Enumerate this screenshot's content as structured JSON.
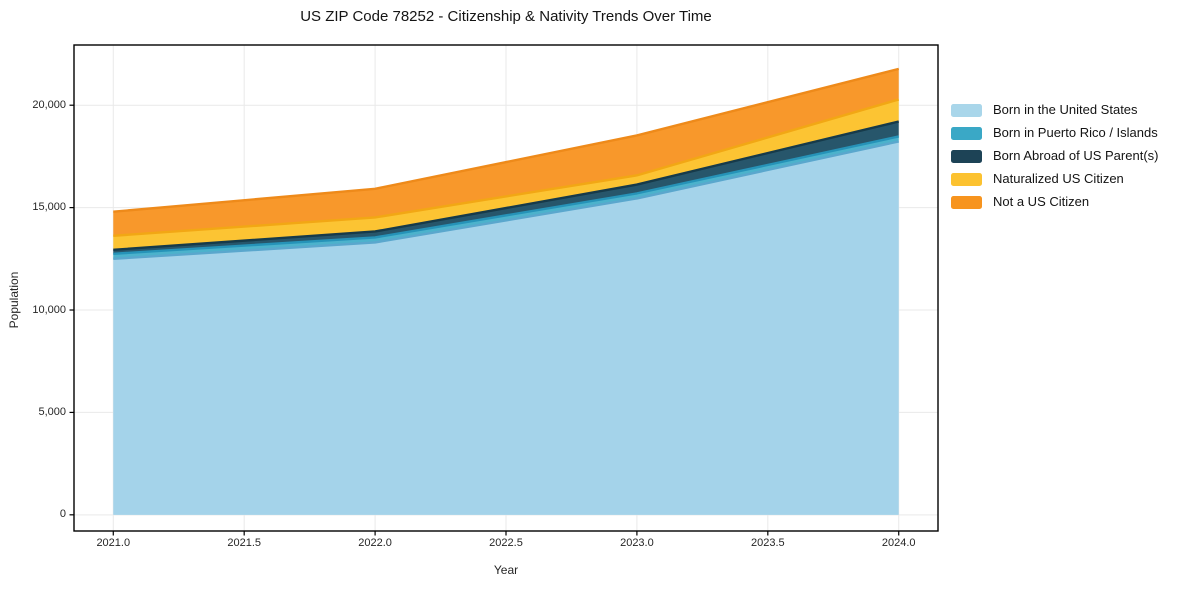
{
  "chart_data": {
    "type": "area",
    "stacked": true,
    "title": "US ZIP Code 78252 - Citizenship & Nativity Trends Over Time",
    "xlabel": "Year",
    "ylabel": "Population",
    "x": [
      2021,
      2022,
      2023,
      2024
    ],
    "series": [
      {
        "name": "Born in the United States",
        "values": [
          12500,
          13300,
          15450,
          18230
        ],
        "fill_color": "#a4d3ea",
        "line_color": "#5aa7cd",
        "legend_color": "#a9d6ea"
      },
      {
        "name": "Born in Puerto Rico / Islands",
        "values": [
          245,
          245,
          245,
          245
        ],
        "fill_color": "#4cb2cc",
        "line_color": "#2693b8",
        "legend_color": "#3aa8c6"
      },
      {
        "name": "Born Abroad of US Parent(s)",
        "values": [
          195,
          290,
          430,
          730
        ],
        "fill_color": "#27566b",
        "line_color": "#163a4a",
        "legend_color": "#1d4356"
      },
      {
        "name": "Naturalized US Citizen",
        "values": [
          685,
          685,
          450,
          1075
        ],
        "fill_color": "#fcc433",
        "line_color": "#f2a714",
        "legend_color": "#fcc230"
      },
      {
        "name": "Not a US Citizen",
        "values": [
          1175,
          1400,
          1950,
          1495
        ],
        "fill_color": "#f8982b",
        "line_color": "#ee8a1a",
        "legend_color": "#f7941e"
      }
    ],
    "stacked_totals": [
      14800,
      15920,
      18525,
      21775
    ],
    "xticks": {
      "values": [
        2021.0,
        2021.5,
        2022.0,
        2022.5,
        2023.0,
        2023.5,
        2024.0
      ],
      "labels": [
        "2021.0",
        "2021.5",
        "2022.0",
        "2022.5",
        "2023.0",
        "2023.5",
        "2024.0"
      ]
    },
    "yticks": {
      "values": [
        0,
        5000,
        10000,
        15000,
        20000
      ],
      "labels": [
        "0",
        "5,000",
        "10,000",
        "15,000",
        "20,000"
      ]
    },
    "xlim": [
      2020.85,
      2024.15
    ],
    "ylim": [
      -790,
      22940
    ],
    "grid": true,
    "grid_color": "#e9e9e9",
    "frame_color": "#000000",
    "legend_position": "outside-right"
  }
}
